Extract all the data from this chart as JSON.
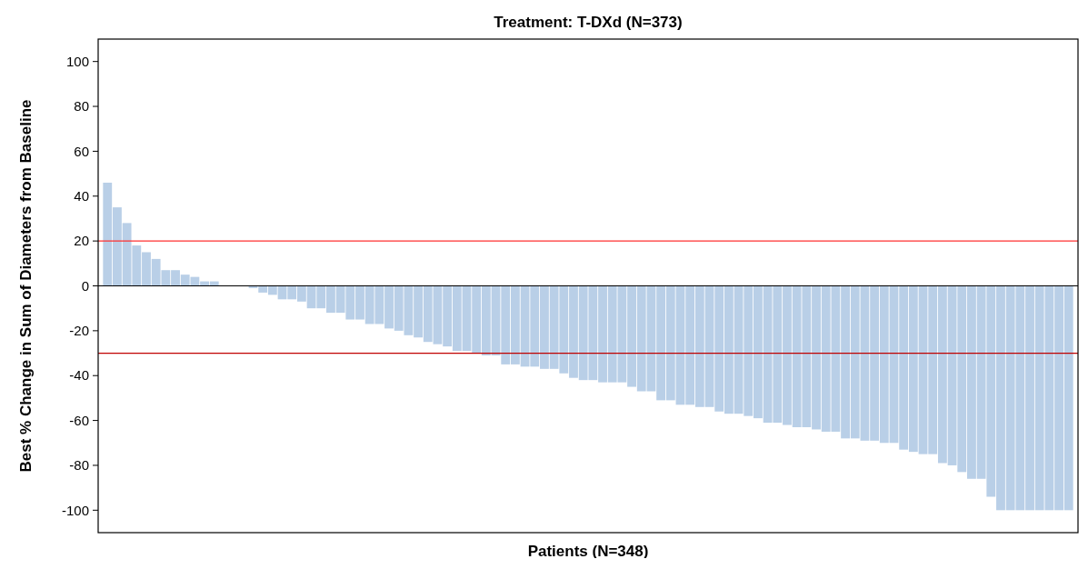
{
  "chart_data": {
    "type": "bar",
    "title": "Treatment: T-DXd (N=373)",
    "xlabel": "Patients (N=348)",
    "ylabel": "Best % Change in Sum of Diameters from Baseline",
    "categories": [
      null,
      null,
      null,
      null,
      null,
      null,
      null,
      null,
      null,
      null,
      null,
      null,
      null,
      null,
      null,
      null,
      null,
      null,
      null,
      null,
      null,
      null,
      null,
      null,
      null,
      null,
      null,
      null,
      null,
      null,
      null,
      null,
      null,
      null,
      null,
      null,
      null,
      null,
      null,
      null,
      null,
      null,
      null,
      null,
      null,
      null,
      null,
      null,
      null,
      null,
      null,
      null,
      null,
      null,
      null,
      null,
      null,
      null,
      null,
      null,
      null,
      null,
      null,
      null,
      null,
      null,
      null,
      null,
      null,
      null,
      null,
      null,
      null,
      null,
      null,
      null,
      null,
      null,
      null,
      null,
      null,
      null,
      null,
      null,
      null,
      null,
      null,
      null,
      null,
      null,
      null,
      null,
      null,
      null,
      null,
      null,
      null,
      null,
      null,
      null
    ],
    "values": [
      46,
      35,
      28,
      18,
      15,
      12,
      7,
      7,
      5,
      4,
      2,
      2,
      0,
      0,
      0,
      -1,
      -3,
      -4,
      -6,
      -6,
      -7,
      -10,
      -10,
      -12,
      -12,
      -15,
      -15,
      -17,
      -17,
      -19,
      -20,
      -22,
      -23,
      -25,
      -26,
      -27,
      -29,
      -29,
      -30,
      -31,
      -31,
      -35,
      -35,
      -36,
      -36,
      -37,
      -37,
      -39,
      -41,
      -42,
      -42,
      -43,
      -43,
      -43,
      -45,
      -47,
      -47,
      -51,
      -51,
      -53,
      -53,
      -54,
      -54,
      -56,
      -57,
      -57,
      -58,
      -59,
      -61,
      -61,
      -62,
      -63,
      -63,
      -64,
      -65,
      -65,
      -68,
      -68,
      -69,
      -69,
      -70,
      -70,
      -73,
      -74,
      -75,
      -75,
      -79,
      -80,
      -83,
      -86,
      -86,
      -94,
      -100,
      -100,
      -100,
      -100,
      -100,
      -100,
      -100,
      -100
    ],
    "color": "#b9cfe7",
    "ylim": [
      -110,
      110
    ],
    "yticks": [
      -100,
      -80,
      -60,
      -40,
      -20,
      0,
      20,
      40,
      60,
      80,
      100
    ],
    "tick_labels": "y",
    "grid": false,
    "ref_lines": [
      {
        "axis": "y",
        "value": 20,
        "color": "#ff3030"
      },
      {
        "axis": "y",
        "value": 0,
        "color": "#000000"
      },
      {
        "axis": "y",
        "value": -30,
        "color": "#c00000"
      }
    ]
  }
}
